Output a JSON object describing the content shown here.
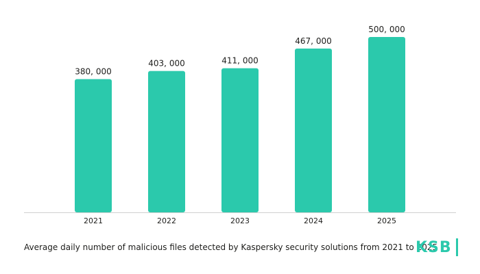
{
  "chart_data": {
    "type": "bar",
    "categories": [
      "2021",
      "2022",
      "2023",
      "2024",
      "2025"
    ],
    "values": [
      380000,
      403000,
      411000,
      467000,
      500000
    ],
    "value_labels": [
      "380, 000",
      "403, 000",
      "411, 000",
      "467, 000",
      "500, 000"
    ],
    "title": "",
    "xlabel": "",
    "ylabel": "",
    "ylim": [
      0,
      500000
    ],
    "grid": false,
    "legend": "none"
  },
  "caption": "Average daily number of malicious files detected by Kaspersky security solutions from 2021 to 2025",
  "logo": {
    "text": "KSB"
  },
  "colors": {
    "bar": "#2bc9ac",
    "axis": "#d0d0d0",
    "text": "#1d1d1b",
    "logo": "#2bc9ac"
  }
}
